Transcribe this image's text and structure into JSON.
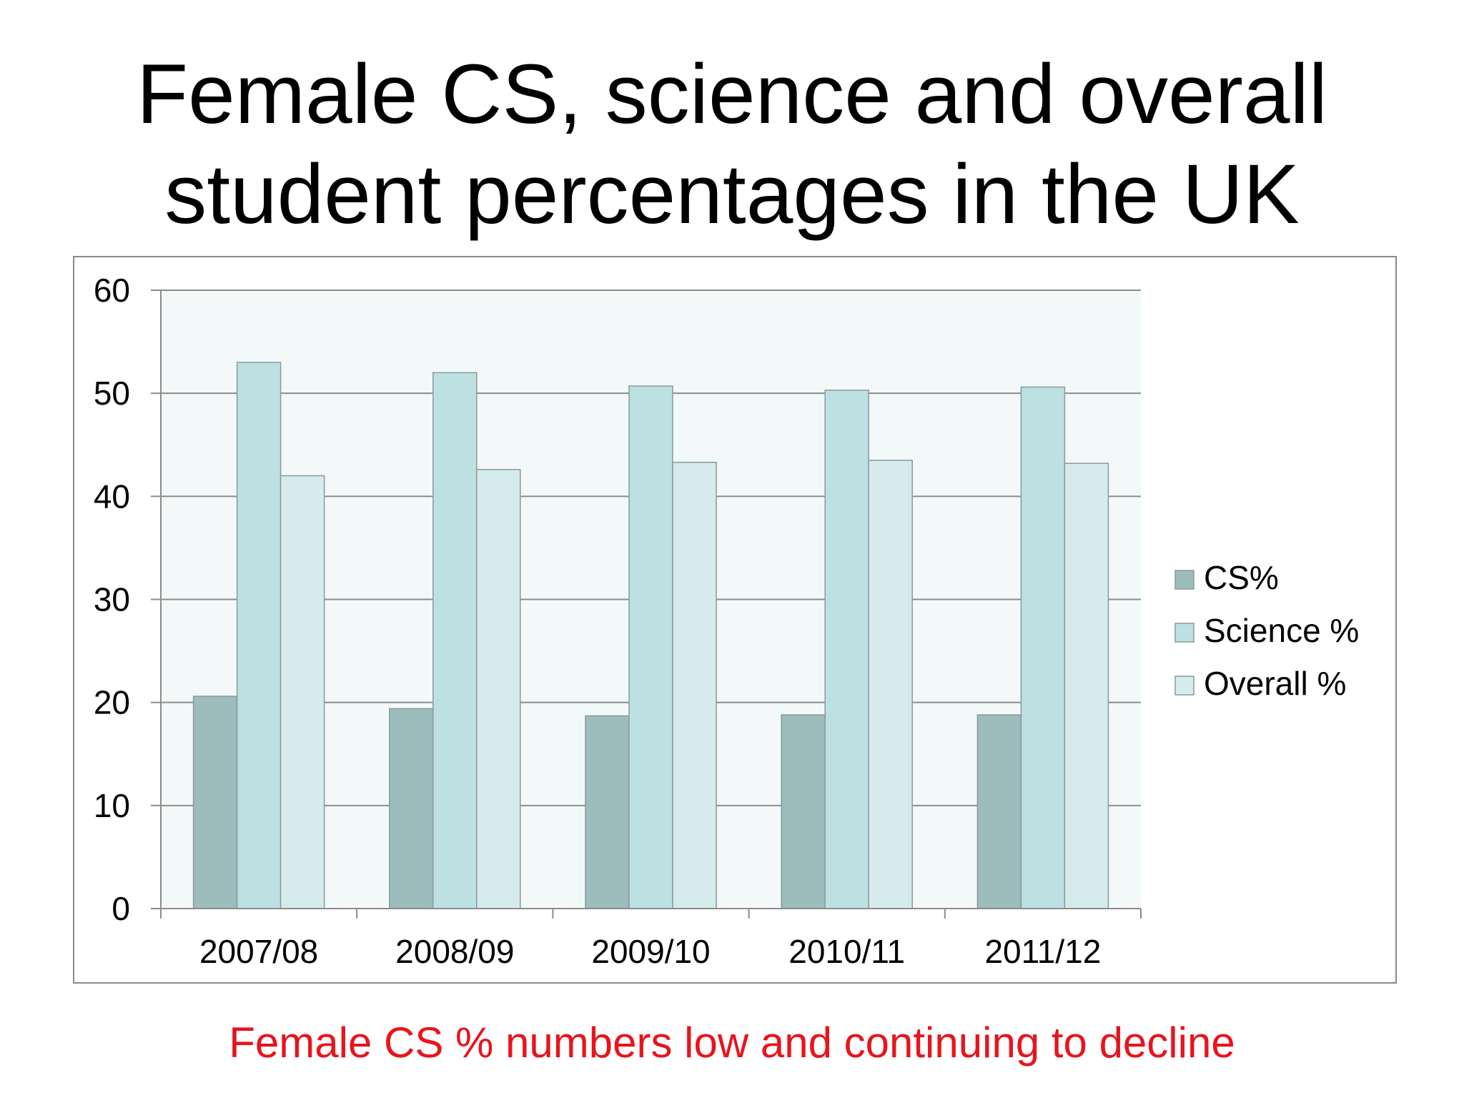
{
  "slide": {
    "title_line1": "Female CS, science and overall",
    "title_line2": "student percentages in the UK",
    "caption": "Female CS % numbers low and continuing to decline",
    "caption_color": "#e8141c"
  },
  "chart_data": {
    "type": "bar",
    "categories": [
      "2007/08",
      "2008/09",
      "2009/10",
      "2010/11",
      "2011/12"
    ],
    "series": [
      {
        "name": "CS%",
        "values": [
          20.6,
          19.4,
          18.7,
          18.8,
          18.8
        ],
        "color": "#9dbcbc"
      },
      {
        "name": "Science %",
        "values": [
          53.0,
          52.0,
          50.7,
          50.3,
          50.6
        ],
        "color": "#bde0e2"
      },
      {
        "name": "Overall %",
        "values": [
          42.0,
          42.6,
          43.3,
          43.5,
          43.2
        ],
        "color": "#d6ebec"
      }
    ],
    "title": "",
    "xlabel": "",
    "ylabel": "",
    "ylim": [
      0,
      60
    ],
    "yticks": [
      "0",
      "10",
      "20",
      "30",
      "40",
      "50",
      "60"
    ],
    "grid": true,
    "legend_position": "right",
    "plot_background": "#f3f9f9",
    "bar_outline": "#8a9a9a"
  }
}
